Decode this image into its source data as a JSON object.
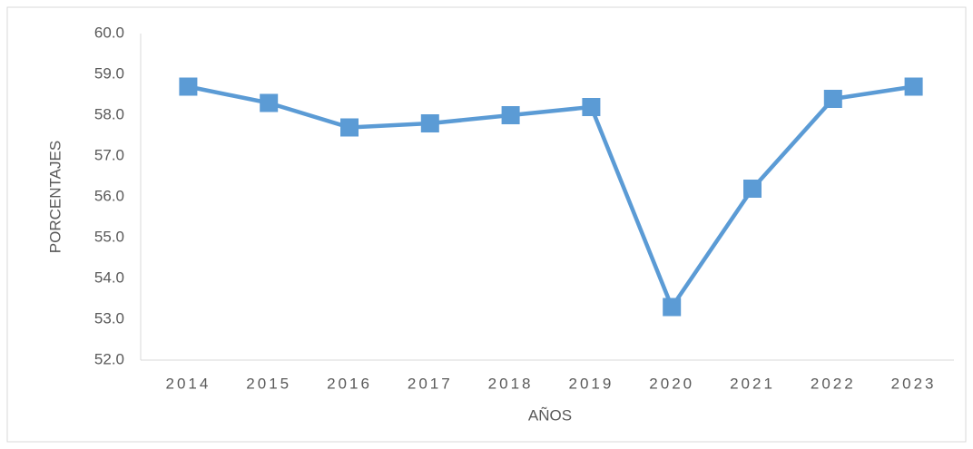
{
  "chart_data": {
    "type": "line",
    "x_label": "AÑOS",
    "y_label": "PORCENTAJES",
    "categories": [
      "2014",
      "2015",
      "2016",
      "2017",
      "2018",
      "2019",
      "2020",
      "2021",
      "2022",
      "2023"
    ],
    "values": [
      58.7,
      58.3,
      57.7,
      57.8,
      58.0,
      58.2,
      53.3,
      56.2,
      58.4,
      58.7
    ],
    "color": "#5b9bd5",
    "ylim": [
      52,
      60
    ],
    "yticks": [
      {
        "value": 52,
        "label": "52.0"
      },
      {
        "value": 53,
        "label": "53.0"
      },
      {
        "value": 54,
        "label": "54.0"
      },
      {
        "value": 55,
        "label": "55.0"
      },
      {
        "value": 56,
        "label": "56.0"
      },
      {
        "value": 57,
        "label": "57.0"
      },
      {
        "value": 58,
        "label": "58.0"
      },
      {
        "value": 59,
        "label": "59.0"
      },
      {
        "value": 60,
        "label": "60.0"
      }
    ],
    "grid": false
  }
}
